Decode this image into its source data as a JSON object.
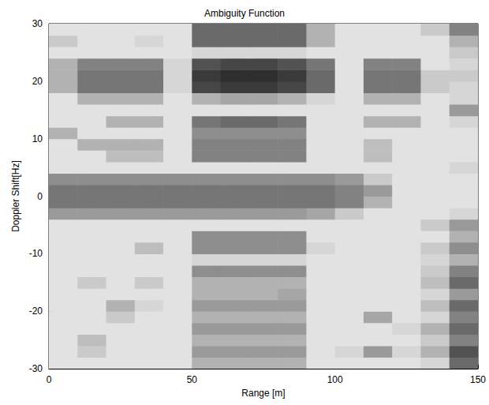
{
  "chart_data": {
    "type": "heatmap",
    "title": "Ambiguity Function",
    "x_label": "Range [m]",
    "y_label": "Doppler Shift[Hz]",
    "xlim": [
      0,
      150
    ],
    "ylim": [
      -30,
      30
    ],
    "xticks": [
      0,
      50,
      100,
      150
    ],
    "yticks": [
      -30,
      -20,
      -10,
      0,
      10,
      20,
      30
    ],
    "zlim": [
      0,
      1
    ],
    "x": [
      5,
      15,
      25,
      35,
      45,
      55,
      65,
      75,
      85,
      95,
      105,
      115,
      125,
      135,
      145
    ],
    "y": [
      -29,
      -27,
      -25,
      -23,
      -21,
      -19,
      -17,
      -15,
      -13,
      -11,
      -9,
      -7,
      -5,
      -3,
      -1,
      1,
      3,
      5,
      7,
      9,
      11,
      13,
      15,
      17,
      19,
      21,
      23,
      25,
      27,
      29
    ],
    "values": [
      [
        0.1,
        0.1,
        0.1,
        0.1,
        0.1,
        0.3,
        0.3,
        0.3,
        0.3,
        0.1,
        0.1,
        0.1,
        0.1,
        0.15,
        0.6
      ],
      [
        0.1,
        0.2,
        0.1,
        0.1,
        0.1,
        0.4,
        0.4,
        0.4,
        0.4,
        0.1,
        0.15,
        0.4,
        0.15,
        0.3,
        0.7
      ],
      [
        0.1,
        0.25,
        0.1,
        0.1,
        0.1,
        0.3,
        0.3,
        0.3,
        0.3,
        0.1,
        0.1,
        0.1,
        0.1,
        0.2,
        0.5
      ],
      [
        0.1,
        0.1,
        0.1,
        0.1,
        0.1,
        0.4,
        0.4,
        0.4,
        0.4,
        0.1,
        0.1,
        0.1,
        0.15,
        0.3,
        0.6
      ],
      [
        0.1,
        0.1,
        0.2,
        0.1,
        0.1,
        0.3,
        0.3,
        0.3,
        0.3,
        0.1,
        0.1,
        0.35,
        0.1,
        0.15,
        0.5
      ],
      [
        0.1,
        0.1,
        0.3,
        0.15,
        0.1,
        0.4,
        0.4,
        0.4,
        0.4,
        0.1,
        0.1,
        0.1,
        0.1,
        0.25,
        0.6
      ],
      [
        0.1,
        0.1,
        0.1,
        0.1,
        0.1,
        0.3,
        0.3,
        0.3,
        0.35,
        0.1,
        0.1,
        0.1,
        0.1,
        0.15,
        0.4
      ],
      [
        0.1,
        0.2,
        0.1,
        0.2,
        0.1,
        0.3,
        0.3,
        0.3,
        0.3,
        0.1,
        0.1,
        0.1,
        0.1,
        0.25,
        0.6
      ],
      [
        0.1,
        0.1,
        0.1,
        0.1,
        0.1,
        0.45,
        0.45,
        0.45,
        0.45,
        0.1,
        0.1,
        0.1,
        0.1,
        0.2,
        0.5
      ],
      [
        0.1,
        0.1,
        0.1,
        0.1,
        0.1,
        0.15,
        0.15,
        0.15,
        0.15,
        0.1,
        0.1,
        0.1,
        0.1,
        0.15,
        0.3
      ],
      [
        0.1,
        0.1,
        0.1,
        0.25,
        0.1,
        0.45,
        0.45,
        0.45,
        0.45,
        0.15,
        0.1,
        0.1,
        0.1,
        0.2,
        0.45
      ],
      [
        0.1,
        0.1,
        0.1,
        0.1,
        0.1,
        0.45,
        0.45,
        0.45,
        0.45,
        0.1,
        0.1,
        0.1,
        0.1,
        0.1,
        0.3
      ],
      [
        0.1,
        0.1,
        0.1,
        0.1,
        0.1,
        0.1,
        0.1,
        0.1,
        0.1,
        0.1,
        0.1,
        0.1,
        0.1,
        0.2,
        0.4
      ],
      [
        0.4,
        0.4,
        0.4,
        0.4,
        0.4,
        0.4,
        0.4,
        0.4,
        0.4,
        0.35,
        0.2,
        0.1,
        0.1,
        0.1,
        0.15
      ],
      [
        0.55,
        0.55,
        0.55,
        0.55,
        0.55,
        0.55,
        0.55,
        0.55,
        0.55,
        0.55,
        0.5,
        0.3,
        0.1,
        0.1,
        0.1
      ],
      [
        0.55,
        0.55,
        0.55,
        0.55,
        0.55,
        0.55,
        0.55,
        0.55,
        0.55,
        0.55,
        0.5,
        0.4,
        0.1,
        0.1,
        0.1
      ],
      [
        0.45,
        0.45,
        0.45,
        0.45,
        0.45,
        0.45,
        0.45,
        0.45,
        0.45,
        0.45,
        0.4,
        0.2,
        0.1,
        0.1,
        0.1
      ],
      [
        0.1,
        0.1,
        0.1,
        0.1,
        0.1,
        0.1,
        0.1,
        0.1,
        0.1,
        0.1,
        0.1,
        0.1,
        0.1,
        0.1,
        0.15
      ],
      [
        0.1,
        0.1,
        0.25,
        0.25,
        0.1,
        0.5,
        0.5,
        0.5,
        0.5,
        0.1,
        0.1,
        0.25,
        0.1,
        0.1,
        0.1
      ],
      [
        0.1,
        0.3,
        0.3,
        0.3,
        0.1,
        0.5,
        0.5,
        0.5,
        0.5,
        0.1,
        0.1,
        0.25,
        0.1,
        0.1,
        0.1
      ],
      [
        0.3,
        0.1,
        0.1,
        0.1,
        0.1,
        0.45,
        0.45,
        0.45,
        0.45,
        0.1,
        0.1,
        0.1,
        0.1,
        0.1,
        0.1
      ],
      [
        0.1,
        0.1,
        0.3,
        0.3,
        0.1,
        0.55,
        0.6,
        0.6,
        0.55,
        0.1,
        0.1,
        0.3,
        0.3,
        0.1,
        0.15
      ],
      [
        0.1,
        0.1,
        0.1,
        0.1,
        0.1,
        0.1,
        0.1,
        0.1,
        0.1,
        0.1,
        0.1,
        0.1,
        0.1,
        0.1,
        0.4
      ],
      [
        0.1,
        0.3,
        0.3,
        0.3,
        0.1,
        0.3,
        0.35,
        0.35,
        0.3,
        0.15,
        0.1,
        0.3,
        0.3,
        0.1,
        0.15
      ],
      [
        0.3,
        0.55,
        0.55,
        0.55,
        0.15,
        0.75,
        0.8,
        0.8,
        0.75,
        0.6,
        0.1,
        0.55,
        0.55,
        0.2,
        0.15
      ],
      [
        0.3,
        0.55,
        0.55,
        0.55,
        0.15,
        0.8,
        0.85,
        0.85,
        0.8,
        0.6,
        0.1,
        0.55,
        0.55,
        0.2,
        0.2
      ],
      [
        0.3,
        0.5,
        0.5,
        0.5,
        0.15,
        0.7,
        0.75,
        0.75,
        0.7,
        0.55,
        0.1,
        0.5,
        0.5,
        0.1,
        0.15
      ],
      [
        0.1,
        0.1,
        0.1,
        0.1,
        0.1,
        0.15,
        0.15,
        0.15,
        0.15,
        0.1,
        0.1,
        0.1,
        0.1,
        0.1,
        0.2
      ],
      [
        0.2,
        0.1,
        0.1,
        0.15,
        0.1,
        0.6,
        0.6,
        0.6,
        0.6,
        0.3,
        0.1,
        0.1,
        0.1,
        0.1,
        0.3
      ],
      [
        0.1,
        0.1,
        0.1,
        0.1,
        0.1,
        0.6,
        0.6,
        0.6,
        0.6,
        0.3,
        0.1,
        0.1,
        0.1,
        0.2,
        0.5
      ]
    ]
  }
}
